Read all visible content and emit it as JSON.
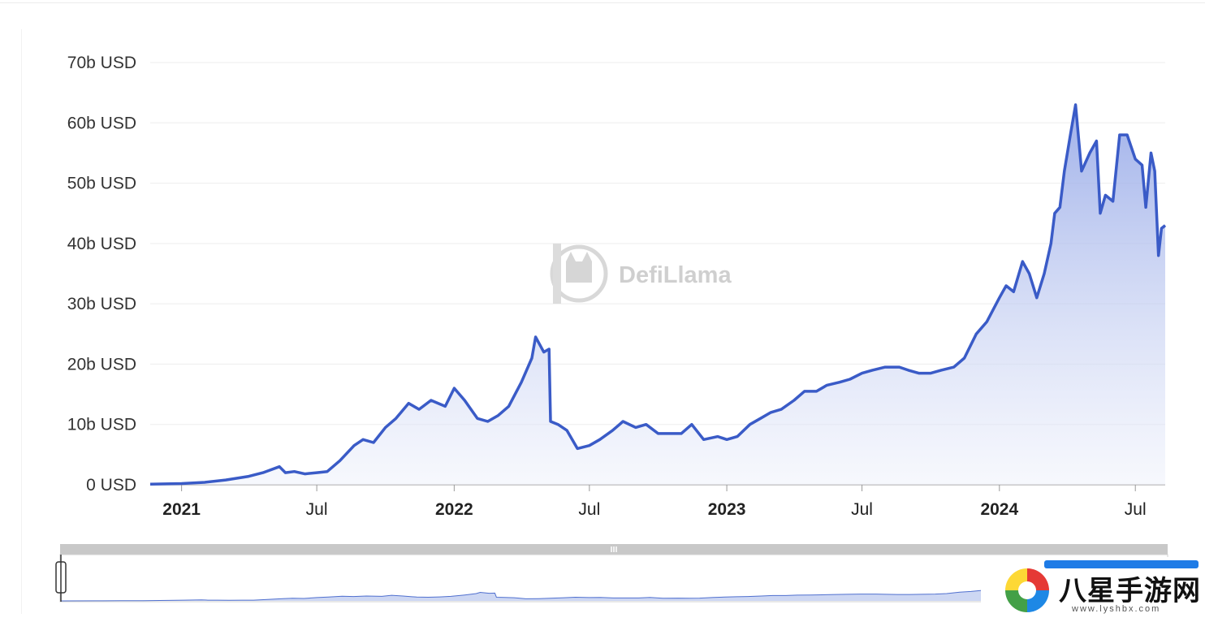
{
  "chart_data": {
    "type": "area",
    "title": "",
    "xlabel": "",
    "ylabel": "",
    "ylim": [
      0,
      70
    ],
    "y_unit": "b USD",
    "y_ticks": [
      {
        "value": 0,
        "label": "0 USD"
      },
      {
        "value": 10,
        "label": "10b USD"
      },
      {
        "value": 20,
        "label": "20b USD"
      },
      {
        "value": 30,
        "label": "30b USD"
      },
      {
        "value": 40,
        "label": "40b USD"
      },
      {
        "value": 50,
        "label": "50b USD"
      },
      {
        "value": 60,
        "label": "60b USD"
      },
      {
        "value": 70,
        "label": "70b USD"
      }
    ],
    "xlim": [
      "2020-11-20",
      "2024-08-10"
    ],
    "x_ticks": [
      {
        "date": "2021-01-01",
        "label": "2021",
        "major": true
      },
      {
        "date": "2021-07-01",
        "label": "Jul",
        "major": false
      },
      {
        "date": "2022-01-01",
        "label": "2022",
        "major": true
      },
      {
        "date": "2022-07-01",
        "label": "Jul",
        "major": false
      },
      {
        "date": "2023-01-01",
        "label": "2023",
        "major": true
      },
      {
        "date": "2023-07-01",
        "label": "Jul",
        "major": false
      },
      {
        "date": "2024-01-01",
        "label": "2024",
        "major": true
      },
      {
        "date": "2024-07-01",
        "label": "Jul",
        "major": false
      }
    ],
    "grid": true,
    "line_color": "#3a5bc7",
    "fill_color": "#a9b9ec",
    "series": [
      {
        "x": [
          "2020-11-20",
          "2021-01-01",
          "2021-02-01",
          "2021-03-01",
          "2021-04-01",
          "2021-04-20",
          "2021-05-12",
          "2021-05-20",
          "2021-06-01",
          "2021-06-15",
          "2021-07-01",
          "2021-07-15",
          "2021-08-01",
          "2021-08-20",
          "2021-09-01",
          "2021-09-15",
          "2021-10-01",
          "2021-10-15",
          "2021-11-01",
          "2021-11-15",
          "2021-12-01",
          "2021-12-20",
          "2022-01-01",
          "2022-01-15",
          "2022-02-01",
          "2022-02-15",
          "2022-03-01",
          "2022-03-15",
          "2022-04-01",
          "2022-04-15",
          "2022-04-20",
          "2022-05-01",
          "2022-05-08",
          "2022-05-10",
          "2022-05-20",
          "2022-06-01",
          "2022-06-15",
          "2022-07-01",
          "2022-07-15",
          "2022-08-01",
          "2022-08-15",
          "2022-09-01",
          "2022-09-15",
          "2022-10-01",
          "2022-10-15",
          "2022-11-01",
          "2022-11-15",
          "2022-12-01",
          "2022-12-20",
          "2023-01-01",
          "2023-01-15",
          "2023-02-01",
          "2023-02-15",
          "2023-03-01",
          "2023-03-15",
          "2023-04-01",
          "2023-04-15",
          "2023-05-01",
          "2023-05-15",
          "2023-06-01",
          "2023-06-15",
          "2023-07-01",
          "2023-07-15",
          "2023-08-01",
          "2023-08-20",
          "2023-09-01",
          "2023-09-15",
          "2023-10-01",
          "2023-10-15",
          "2023-11-01",
          "2023-11-15",
          "2023-12-01",
          "2023-12-15",
          "2024-01-01",
          "2024-01-10",
          "2024-01-20",
          "2024-02-01",
          "2024-02-10",
          "2024-02-20",
          "2024-03-01",
          "2024-03-10",
          "2024-03-15",
          "2024-03-22",
          "2024-03-28",
          "2024-04-05",
          "2024-04-12",
          "2024-04-20",
          "2024-05-01",
          "2024-05-10",
          "2024-05-15",
          "2024-05-22",
          "2024-06-01",
          "2024-06-10",
          "2024-06-20",
          "2024-07-01",
          "2024-07-10",
          "2024-07-15",
          "2024-07-22",
          "2024-07-27",
          "2024-08-01",
          "2024-08-05",
          "2024-08-10"
        ],
        "values": [
          0.1,
          0.2,
          0.4,
          0.8,
          1.4,
          2.0,
          3.0,
          2.0,
          2.2,
          1.8,
          2.0,
          2.2,
          4.0,
          6.5,
          7.5,
          7.0,
          9.5,
          11.0,
          13.5,
          12.5,
          14.0,
          13.0,
          16.0,
          14.0,
          11.0,
          10.5,
          11.5,
          13.0,
          17.0,
          21.0,
          24.5,
          22.0,
          22.5,
          10.5,
          10.0,
          9.0,
          6.0,
          6.5,
          7.5,
          9.0,
          10.5,
          9.5,
          10.0,
          8.5,
          8.5,
          8.5,
          10.0,
          7.5,
          8.0,
          7.5,
          8.0,
          10.0,
          11.0,
          12.0,
          12.5,
          14.0,
          15.5,
          15.5,
          16.5,
          17.0,
          17.5,
          18.5,
          19.0,
          19.5,
          19.5,
          19.0,
          18.5,
          18.5,
          19.0,
          19.5,
          21.0,
          25.0,
          27.0,
          31.0,
          33.0,
          32.0,
          37.0,
          35.0,
          31.0,
          35.0,
          40.0,
          45.0,
          46.0,
          52.0,
          58.0,
          63.0,
          52.0,
          55.0,
          57.0,
          45.0,
          48.0,
          47.0,
          58.0,
          58.0,
          54.0,
          53.0,
          46.0,
          55.0,
          52.0,
          38.0,
          42.5,
          43.0
        ]
      }
    ]
  },
  "watermark": {
    "text": "DefiLlama",
    "icon": "llama-logo-icon"
  },
  "navigator": {
    "handle_icon": "grip-icon"
  },
  "site_badge": {
    "text": "八星手游网",
    "subtext": "www.lyshbx.com",
    "icon": "site-logo-icon"
  }
}
